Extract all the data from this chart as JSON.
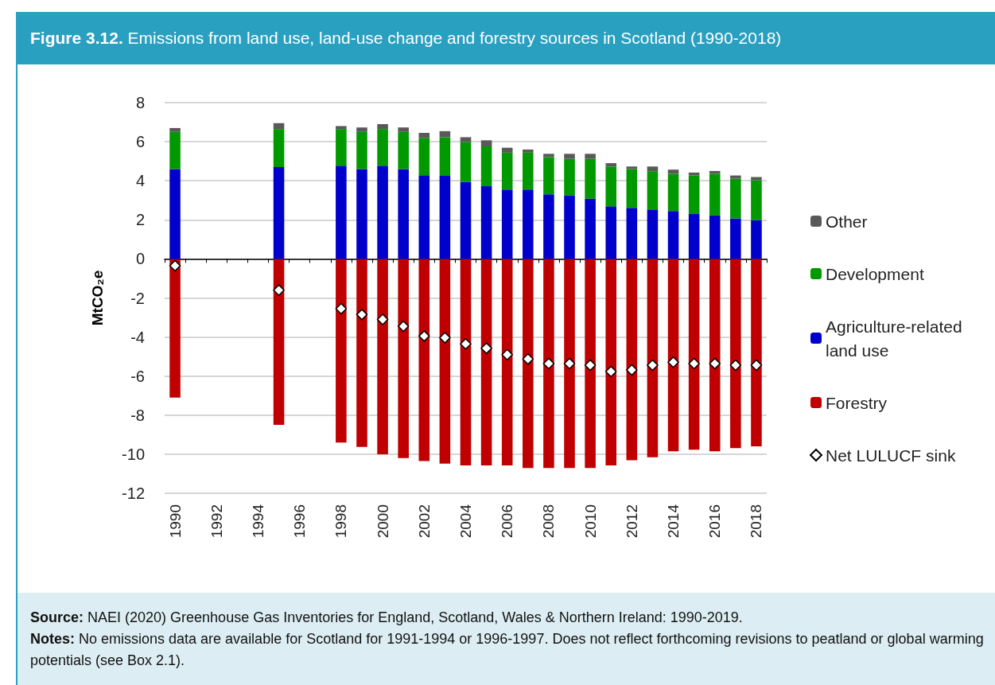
{
  "chart_data": {
    "type": "bar",
    "title": "Figure 3.12. Emissions from land use, land-use change and forestry sources in Scotland (1990-2018)",
    "ylabel": "MtCO₂e",
    "categories": [
      "1990",
      null,
      "1992",
      null,
      "1994",
      null,
      "1996",
      null,
      "1998",
      null,
      "2000",
      null,
      "2002",
      null,
      "2004",
      null,
      "2006",
      null,
      "2008",
      null,
      "2010",
      null,
      "2012",
      null,
      "2014",
      null,
      "2016",
      null,
      "2018"
    ],
    "stacked": true,
    "series": [
      {
        "name": "Forestry",
        "color": "#c00000",
        "values": [
          -7.1,
          null,
          null,
          null,
          null,
          -8.5,
          null,
          null,
          -9.4,
          -9.63,
          -10.0,
          -10.2,
          -10.35,
          -10.48,
          -10.57,
          -10.57,
          -10.57,
          -10.71,
          -10.71,
          -10.71,
          -10.71,
          -10.57,
          -10.31,
          -10.16,
          -9.85,
          -9.77,
          -9.85,
          -9.69,
          -9.6
        ]
      },
      {
        "name": "Agriculture-related land use",
        "color": "#0000cc",
        "values": [
          4.6,
          null,
          null,
          null,
          null,
          4.7,
          null,
          null,
          4.77,
          4.6,
          4.77,
          4.6,
          4.28,
          4.25,
          3.95,
          3.72,
          3.55,
          3.55,
          3.31,
          3.24,
          3.08,
          2.69,
          2.61,
          2.53,
          2.45,
          2.3,
          2.22,
          2.07,
          1.99
        ]
      },
      {
        "name": "Development",
        "color": "#009900",
        "values": [
          1.9,
          null,
          null,
          null,
          null,
          1.95,
          null,
          null,
          1.88,
          1.9,
          1.88,
          1.9,
          1.92,
          1.98,
          2.04,
          2.04,
          1.89,
          1.89,
          1.9,
          1.88,
          2.04,
          2.04,
          1.99,
          1.96,
          1.91,
          1.97,
          2.14,
          2.04,
          2.04
        ]
      },
      {
        "name": "Other",
        "color": "#595959",
        "values": [
          0.2,
          null,
          null,
          null,
          null,
          0.3,
          null,
          null,
          0.15,
          0.23,
          0.25,
          0.23,
          0.25,
          0.31,
          0.24,
          0.31,
          0.25,
          0.16,
          0.17,
          0.26,
          0.26,
          0.17,
          0.13,
          0.24,
          0.21,
          0.15,
          0.14,
          0.16,
          0.16
        ]
      },
      {
        "name": "Net LULUCF sink",
        "type": "scatter",
        "marker": "diamond",
        "color": "#ffffff",
        "values": [
          -0.35,
          null,
          null,
          null,
          null,
          -1.6,
          null,
          null,
          -2.55,
          -2.85,
          -3.1,
          -3.45,
          -3.95,
          -4.04,
          -4.35,
          -4.58,
          -4.9,
          -5.13,
          -5.36,
          -5.36,
          -5.44,
          -5.77,
          -5.69,
          -5.44,
          -5.29,
          -5.36,
          -5.36,
          -5.44,
          -5.44
        ]
      }
    ],
    "ylim": [
      -12,
      8
    ],
    "yticks": [
      -12,
      -10,
      -8,
      -6,
      -4,
      -2,
      0,
      2,
      4,
      6,
      8
    ],
    "grid": "y",
    "legend": "right",
    "annotations": [
      "Source: NAEI (2020) Greenhouse Gas Inventories for England, Scotland, Wales & Northern Ireland: 1990-2019.",
      "Notes: No emissions data are available for Scotland for 1991-1994 or 1996-1997. Does not reflect forthcoming revisions to peatland or global warming potentials (see Box 2.1)."
    ]
  }
}
